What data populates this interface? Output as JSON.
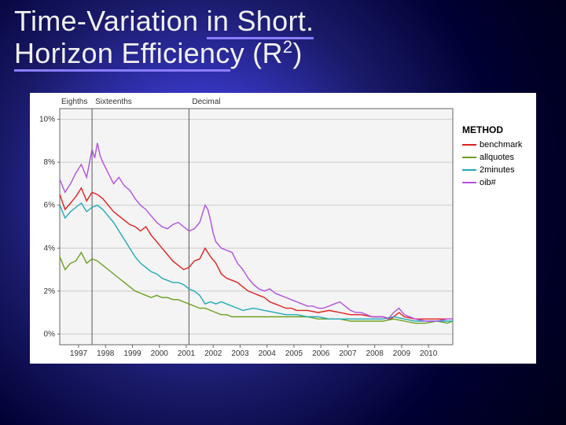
{
  "title": {
    "line1_plain": "Time-Variation ",
    "line1_underlined": "in Short.",
    "line2_underlined": "Horizon Efficienc",
    "line2_plain_after": "y (R",
    "sup": "2",
    "line2_close": ")"
  },
  "chart": {
    "type": "line",
    "background_color": "#f4f4f4",
    "outer_background": "#ffffff",
    "grid_color": "#cccccc",
    "axis_color": "#666666",
    "region_line_color": "#555555",
    "x": {
      "min": 1996.3,
      "max": 2010.9,
      "ticks": [
        1997,
        1998,
        1999,
        2000,
        2001,
        2002,
        2003,
        2004,
        2005,
        2006,
        2007,
        2008,
        2009,
        2010
      ],
      "tick_labels": [
        "1997",
        "1998",
        "1999",
        "2000",
        "2001",
        "2002",
        "2003",
        "2004",
        "2005",
        "2006",
        "2007",
        "2008",
        "2009",
        "2010"
      ],
      "label_fontsize": 10
    },
    "y": {
      "min": -0.5,
      "max": 10.5,
      "ticks": [
        0,
        2,
        4,
        6,
        8,
        10
      ],
      "tick_labels": [
        "0%",
        "2%",
        "4%",
        "6%",
        "8%",
        "10%"
      ],
      "label_fontsize": 10
    },
    "regions": [
      {
        "label": "Eighths",
        "x_end": null
      },
      {
        "label": "Sixteenths",
        "x_start": 1997.5,
        "boundary_x": 1997.5
      },
      {
        "label": "Decimal",
        "x_start": 2001.1,
        "boundary_x": 2001.1
      }
    ],
    "legend": {
      "title": "METHOD",
      "position": "right",
      "items": [
        {
          "label": "benchmark",
          "color": "#e02020"
        },
        {
          "label": "allquotes",
          "color": "#6aa020"
        },
        {
          "label": "2minutes",
          "color": "#20a8b8"
        },
        {
          "label": "oib#",
          "color": "#b050e0"
        }
      ]
    },
    "series": [
      {
        "name": "benchmark",
        "color": "#e02020",
        "points": [
          [
            1996.3,
            6.5
          ],
          [
            1996.5,
            5.8
          ],
          [
            1996.7,
            6.1
          ],
          [
            1996.9,
            6.4
          ],
          [
            1997.1,
            6.8
          ],
          [
            1997.3,
            6.2
          ],
          [
            1997.5,
            6.6
          ],
          [
            1997.7,
            6.5
          ],
          [
            1997.9,
            6.3
          ],
          [
            1998.1,
            6.0
          ],
          [
            1998.3,
            5.7
          ],
          [
            1998.5,
            5.5
          ],
          [
            1998.7,
            5.3
          ],
          [
            1998.9,
            5.1
          ],
          [
            1999.1,
            5.0
          ],
          [
            1999.3,
            4.8
          ],
          [
            1999.5,
            5.0
          ],
          [
            1999.7,
            4.6
          ],
          [
            1999.9,
            4.3
          ],
          [
            2000.1,
            4.0
          ],
          [
            2000.3,
            3.7
          ],
          [
            2000.5,
            3.4
          ],
          [
            2000.7,
            3.2
          ],
          [
            2000.9,
            3.0
          ],
          [
            2001.1,
            3.1
          ],
          [
            2001.3,
            3.4
          ],
          [
            2001.5,
            3.5
          ],
          [
            2001.7,
            4.0
          ],
          [
            2001.9,
            3.6
          ],
          [
            2002.1,
            3.3
          ],
          [
            2002.3,
            2.8
          ],
          [
            2002.5,
            2.6
          ],
          [
            2002.7,
            2.5
          ],
          [
            2002.9,
            2.4
          ],
          [
            2003.1,
            2.2
          ],
          [
            2003.3,
            2.0
          ],
          [
            2003.5,
            1.9
          ],
          [
            2003.7,
            1.8
          ],
          [
            2003.9,
            1.7
          ],
          [
            2004.1,
            1.5
          ],
          [
            2004.3,
            1.4
          ],
          [
            2004.5,
            1.3
          ],
          [
            2004.7,
            1.2
          ],
          [
            2004.9,
            1.2
          ],
          [
            2005.1,
            1.1
          ],
          [
            2005.5,
            1.1
          ],
          [
            2005.9,
            1.0
          ],
          [
            2006.3,
            1.1
          ],
          [
            2006.7,
            1.0
          ],
          [
            2007.1,
            0.9
          ],
          [
            2007.5,
            0.9
          ],
          [
            2007.9,
            0.8
          ],
          [
            2008.3,
            0.8
          ],
          [
            2008.6,
            0.7
          ],
          [
            2008.9,
            1.0
          ],
          [
            2009.1,
            0.8
          ],
          [
            2009.5,
            0.7
          ],
          [
            2009.9,
            0.7
          ],
          [
            2010.3,
            0.7
          ],
          [
            2010.7,
            0.7
          ],
          [
            2010.9,
            0.7
          ]
        ]
      },
      {
        "name": "allquotes",
        "color": "#6aa020",
        "points": [
          [
            1996.3,
            3.6
          ],
          [
            1996.5,
            3.0
          ],
          [
            1996.7,
            3.3
          ],
          [
            1996.9,
            3.4
          ],
          [
            1997.1,
            3.8
          ],
          [
            1997.3,
            3.3
          ],
          [
            1997.5,
            3.5
          ],
          [
            1997.7,
            3.4
          ],
          [
            1997.9,
            3.2
          ],
          [
            1998.1,
            3.0
          ],
          [
            1998.3,
            2.8
          ],
          [
            1998.5,
            2.6
          ],
          [
            1998.7,
            2.4
          ],
          [
            1998.9,
            2.2
          ],
          [
            1999.1,
            2.0
          ],
          [
            1999.3,
            1.9
          ],
          [
            1999.5,
            1.8
          ],
          [
            1999.7,
            1.7
          ],
          [
            1999.9,
            1.8
          ],
          [
            2000.1,
            1.7
          ],
          [
            2000.3,
            1.7
          ],
          [
            2000.5,
            1.6
          ],
          [
            2000.7,
            1.6
          ],
          [
            2000.9,
            1.5
          ],
          [
            2001.1,
            1.4
          ],
          [
            2001.3,
            1.3
          ],
          [
            2001.5,
            1.2
          ],
          [
            2001.7,
            1.2
          ],
          [
            2001.9,
            1.1
          ],
          [
            2002.1,
            1.0
          ],
          [
            2002.3,
            0.9
          ],
          [
            2002.5,
            0.9
          ],
          [
            2002.7,
            0.8
          ],
          [
            2002.9,
            0.8
          ],
          [
            2003.1,
            0.8
          ],
          [
            2003.5,
            0.8
          ],
          [
            2003.9,
            0.8
          ],
          [
            2004.3,
            0.8
          ],
          [
            2004.7,
            0.8
          ],
          [
            2005.1,
            0.8
          ],
          [
            2005.5,
            0.8
          ],
          [
            2005.9,
            0.7
          ],
          [
            2006.3,
            0.7
          ],
          [
            2006.7,
            0.7
          ],
          [
            2007.1,
            0.6
          ],
          [
            2007.5,
            0.6
          ],
          [
            2007.9,
            0.6
          ],
          [
            2008.3,
            0.6
          ],
          [
            2008.7,
            0.7
          ],
          [
            2009.1,
            0.6
          ],
          [
            2009.5,
            0.5
          ],
          [
            2009.9,
            0.5
          ],
          [
            2010.3,
            0.6
          ],
          [
            2010.7,
            0.5
          ],
          [
            2010.9,
            0.6
          ]
        ]
      },
      {
        "name": "2minutes",
        "color": "#20a8b8",
        "points": [
          [
            1996.3,
            6.0
          ],
          [
            1996.5,
            5.4
          ],
          [
            1996.7,
            5.7
          ],
          [
            1996.9,
            5.9
          ],
          [
            1997.1,
            6.1
          ],
          [
            1997.3,
            5.7
          ],
          [
            1997.5,
            5.9
          ],
          [
            1997.7,
            6.0
          ],
          [
            1997.9,
            5.8
          ],
          [
            1998.1,
            5.5
          ],
          [
            1998.3,
            5.2
          ],
          [
            1998.5,
            4.8
          ],
          [
            1998.7,
            4.4
          ],
          [
            1998.9,
            4.0
          ],
          [
            1999.1,
            3.6
          ],
          [
            1999.3,
            3.3
          ],
          [
            1999.5,
            3.1
          ],
          [
            1999.7,
            2.9
          ],
          [
            1999.9,
            2.8
          ],
          [
            2000.1,
            2.6
          ],
          [
            2000.3,
            2.5
          ],
          [
            2000.5,
            2.4
          ],
          [
            2000.7,
            2.4
          ],
          [
            2000.9,
            2.3
          ],
          [
            2001.1,
            2.1
          ],
          [
            2001.3,
            2.0
          ],
          [
            2001.5,
            1.8
          ],
          [
            2001.7,
            1.4
          ],
          [
            2001.9,
            1.5
          ],
          [
            2002.1,
            1.4
          ],
          [
            2002.3,
            1.5
          ],
          [
            2002.5,
            1.4
          ],
          [
            2002.7,
            1.3
          ],
          [
            2002.9,
            1.2
          ],
          [
            2003.1,
            1.1
          ],
          [
            2003.5,
            1.2
          ],
          [
            2003.9,
            1.1
          ],
          [
            2004.3,
            1.0
          ],
          [
            2004.7,
            0.9
          ],
          [
            2005.1,
            0.9
          ],
          [
            2005.5,
            0.8
          ],
          [
            2005.9,
            0.8
          ],
          [
            2006.3,
            0.7
          ],
          [
            2006.7,
            0.7
          ],
          [
            2007.1,
            0.7
          ],
          [
            2007.5,
            0.7
          ],
          [
            2007.9,
            0.7
          ],
          [
            2008.3,
            0.7
          ],
          [
            2008.7,
            0.8
          ],
          [
            2009.1,
            0.7
          ],
          [
            2009.5,
            0.6
          ],
          [
            2009.9,
            0.6
          ],
          [
            2010.3,
            0.6
          ],
          [
            2010.7,
            0.6
          ],
          [
            2010.9,
            0.6
          ]
        ]
      },
      {
        "name": "oib#",
        "color": "#b050e0",
        "points": [
          [
            1996.3,
            7.2
          ],
          [
            1996.5,
            6.6
          ],
          [
            1996.7,
            7.0
          ],
          [
            1996.9,
            7.5
          ],
          [
            1997.1,
            7.9
          ],
          [
            1997.3,
            7.3
          ],
          [
            1997.5,
            8.6
          ],
          [
            1997.6,
            8.2
          ],
          [
            1997.7,
            8.9
          ],
          [
            1997.8,
            8.3
          ],
          [
            1997.9,
            8.0
          ],
          [
            1998.1,
            7.5
          ],
          [
            1998.3,
            7.0
          ],
          [
            1998.5,
            7.3
          ],
          [
            1998.7,
            6.9
          ],
          [
            1998.9,
            6.7
          ],
          [
            1999.1,
            6.3
          ],
          [
            1999.3,
            6.0
          ],
          [
            1999.5,
            5.8
          ],
          [
            1999.7,
            5.5
          ],
          [
            1999.9,
            5.2
          ],
          [
            2000.1,
            5.0
          ],
          [
            2000.3,
            4.9
          ],
          [
            2000.5,
            5.1
          ],
          [
            2000.7,
            5.2
          ],
          [
            2000.9,
            5.0
          ],
          [
            2001.1,
            4.8
          ],
          [
            2001.3,
            4.9
          ],
          [
            2001.5,
            5.2
          ],
          [
            2001.6,
            5.6
          ],
          [
            2001.7,
            6.0
          ],
          [
            2001.8,
            5.8
          ],
          [
            2001.9,
            5.3
          ],
          [
            2002.0,
            4.7
          ],
          [
            2002.1,
            4.3
          ],
          [
            2002.3,
            4.0
          ],
          [
            2002.5,
            3.9
          ],
          [
            2002.7,
            3.8
          ],
          [
            2002.9,
            3.3
          ],
          [
            2003.1,
            3.0
          ],
          [
            2003.3,
            2.6
          ],
          [
            2003.5,
            2.3
          ],
          [
            2003.7,
            2.1
          ],
          [
            2003.9,
            2.0
          ],
          [
            2004.1,
            2.1
          ],
          [
            2004.3,
            1.9
          ],
          [
            2004.5,
            1.8
          ],
          [
            2004.7,
            1.7
          ],
          [
            2004.9,
            1.6
          ],
          [
            2005.1,
            1.5
          ],
          [
            2005.3,
            1.4
          ],
          [
            2005.5,
            1.3
          ],
          [
            2005.7,
            1.3
          ],
          [
            2005.9,
            1.2
          ],
          [
            2006.1,
            1.2
          ],
          [
            2006.3,
            1.3
          ],
          [
            2006.5,
            1.4
          ],
          [
            2006.7,
            1.5
          ],
          [
            2006.9,
            1.3
          ],
          [
            2007.1,
            1.1
          ],
          [
            2007.3,
            1.0
          ],
          [
            2007.5,
            1.0
          ],
          [
            2007.7,
            0.9
          ],
          [
            2007.9,
            0.8
          ],
          [
            2008.3,
            0.8
          ],
          [
            2008.5,
            0.7
          ],
          [
            2008.7,
            1.0
          ],
          [
            2008.9,
            1.2
          ],
          [
            2009.1,
            0.9
          ],
          [
            2009.3,
            0.8
          ],
          [
            2009.5,
            0.7
          ],
          [
            2009.9,
            0.6
          ],
          [
            2010.3,
            0.6
          ],
          [
            2010.7,
            0.7
          ],
          [
            2010.9,
            0.7
          ]
        ]
      }
    ]
  }
}
